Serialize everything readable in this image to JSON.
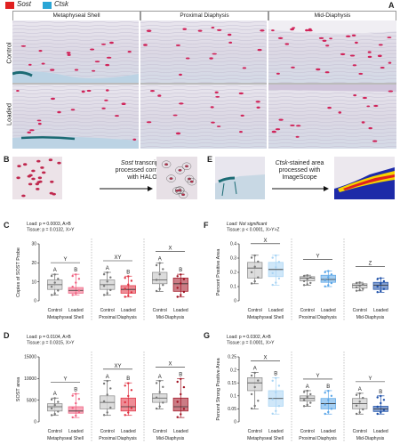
{
  "legend": {
    "items": [
      {
        "label": "Sost",
        "color": "#e02020"
      },
      {
        "label": "Ctsk",
        "color": "#2aa6d6"
      }
    ]
  },
  "panel_letters": [
    "A",
    "B",
    "C",
    "D",
    "E",
    "F",
    "G"
  ],
  "panel_a": {
    "columns": [
      "Metaphyseal Shell",
      "Proximal Diaphysis",
      "Mid-Diaphysis"
    ],
    "rows": [
      "Control",
      "Loaded"
    ]
  },
  "panel_b": {
    "caption_line1_italic": "Sost",
    "caption_line1_rest": " transcripts",
    "caption_line2": "processed correctly",
    "caption_line3": "with HALO"
  },
  "panel_e": {
    "caption_line1_italic": "Ctsk",
    "caption_line1_rest": "-stained area",
    "caption_line2": "processed with",
    "caption_line3": "ImageScope"
  },
  "colors": {
    "control_box": "#b0b0b0",
    "ms_loaded": "#f06080",
    "pd_loaded": "#e03040",
    "md_loaded": "#a01020",
    "f_loaded_ms": "#a8d4f4",
    "f_loaded_pd": "#5aa6e8",
    "f_loaded_md": "#1c4fa8"
  },
  "chart_data": [
    {
      "panel": "C",
      "type": "box",
      "ylabel": "Copies of SOST Probe",
      "ylim": [
        0,
        30
      ],
      "yticks": [
        0,
        10,
        20,
        30
      ],
      "stats": [
        "Load: p = 0.0003, A>B",
        "Tissue: p = 0.0132, X>Y"
      ],
      "groups": [
        {
          "region": "Metaphyseal Shell",
          "letter": "Y",
          "boxes": [
            {
              "label": "Control",
              "sig": "A",
              "q1": 6,
              "median": 8.5,
              "q3": 11,
              "min": 3,
              "max": 14
            },
            {
              "label": "Loaded",
              "sig": "B",
              "q1": 4,
              "median": 5.5,
              "q3": 7,
              "min": 3,
              "max": 14
            }
          ]
        },
        {
          "region": "Proximal Diaphysis",
          "letter": "XY",
          "boxes": [
            {
              "label": "Control",
              "sig": "A",
              "q1": 6,
              "median": 8.5,
              "q3": 11,
              "min": 3,
              "max": 15
            },
            {
              "label": "Loaded",
              "sig": "B",
              "q1": 4,
              "median": 6,
              "q3": 8,
              "min": 2,
              "max": 13
            }
          ]
        },
        {
          "region": "Mid-Diaphysis",
          "letter": "X",
          "boxes": [
            {
              "label": "Control",
              "sig": "A",
              "q1": 9,
              "median": 11,
              "q3": 15,
              "min": 5,
              "max": 20
            },
            {
              "label": "Loaded",
              "sig": "B",
              "q1": 5,
              "median": 9,
              "q3": 12,
              "min": 2,
              "max": 14
            }
          ]
        }
      ]
    },
    {
      "panel": "D",
      "type": "box",
      "ylabel": "SOST area",
      "ylim": [
        0,
        15000
      ],
      "yticks": [
        0,
        5000,
        10000,
        15000
      ],
      "stats": [
        "Load: p = 0.0104, A>B",
        "Tissue: p = 0.0315, X>Y"
      ],
      "groups": [
        {
          "region": "Metaphyseal Shell",
          "letter": "Y",
          "boxes": [
            {
              "label": "Control",
              "sig": "A",
              "q1": 2500,
              "median": 3500,
              "q3": 4200,
              "min": 1500,
              "max": 5500
            },
            {
              "label": "Loaded",
              "sig": "B",
              "q1": 2000,
              "median": 2500,
              "q3": 3500,
              "min": 1000,
              "max": 6500
            }
          ]
        },
        {
          "region": "Proximal Diaphysis",
          "letter": "XY",
          "boxes": [
            {
              "label": "Control",
              "sig": "A",
              "q1": 3000,
              "median": 4500,
              "q3": 6000,
              "min": 1500,
              "max": 9500
            },
            {
              "label": "Loaded",
              "sig": "B",
              "q1": 2500,
              "median": 3500,
              "q3": 5500,
              "min": 1500,
              "max": 9000
            }
          ]
        },
        {
          "region": "Mid-Diaphysis",
          "letter": "X",
          "boxes": [
            {
              "label": "Control",
              "sig": "A",
              "q1": 4500,
              "median": 5500,
              "q3": 6500,
              "min": 3000,
              "max": 9500
            },
            {
              "label": "Loaded",
              "sig": "B",
              "q1": 2500,
              "median": 3500,
              "q3": 5500,
              "min": 1000,
              "max": 10000
            }
          ]
        }
      ]
    },
    {
      "panel": "F",
      "type": "box",
      "ylabel": "Percent Positive Area",
      "ylim": [
        0,
        0.4
      ],
      "yticks": [
        0,
        0.1,
        0.2,
        0.3,
        0.4
      ],
      "stats": [
        "Load: Not significant",
        "Tissue: p < 0.0001, X>Y>Z"
      ],
      "groups": [
        {
          "region": "Metaphyseal Shell",
          "letter": "X",
          "boxes": [
            {
              "label": "Control",
              "q1": 0.16,
              "median": 0.23,
              "q3": 0.27,
              "min": 0.12,
              "max": 0.32
            },
            {
              "label": "Loaded",
              "q1": 0.17,
              "median": 0.22,
              "q3": 0.27,
              "min": 0.11,
              "max": 0.32
            }
          ]
        },
        {
          "region": "Proximal Diaphysis",
          "letter": "Y",
          "boxes": [
            {
              "label": "Control",
              "q1": 0.14,
              "median": 0.16,
              "q3": 0.17,
              "min": 0.11,
              "max": 0.18
            },
            {
              "label": "Loaded",
              "q1": 0.13,
              "median": 0.15,
              "q3": 0.18,
              "min": 0.1,
              "max": 0.21
            }
          ]
        },
        {
          "region": "Mid-Diaphysis",
          "letter": "Z",
          "boxes": [
            {
              "label": "Control",
              "q1": 0.09,
              "median": 0.11,
              "q3": 0.12,
              "min": 0.07,
              "max": 0.13
            },
            {
              "label": "Loaded",
              "q1": 0.08,
              "median": 0.11,
              "q3": 0.13,
              "min": 0.06,
              "max": 0.16
            }
          ]
        }
      ]
    },
    {
      "panel": "G",
      "type": "box",
      "ylabel": "Percent Strong Positive Area",
      "ylim": [
        0,
        0.25
      ],
      "yticks": [
        0,
        0.05,
        0.1,
        0.15,
        0.2,
        0.25
      ],
      "stats": [
        "Load: p = 0.0302, A>B",
        "Tissue: p = 0.0001, X>Y"
      ],
      "groups": [
        {
          "region": "Metaphyseal Shell",
          "letter": "X",
          "boxes": [
            {
              "label": "Control",
              "sig": "A",
              "q1": 0.12,
              "median": 0.15,
              "q3": 0.17,
              "min": 0.05,
              "max": 0.19
            },
            {
              "label": "Loaded",
              "sig": "B",
              "q1": 0.06,
              "median": 0.09,
              "q3": 0.12,
              "min": 0.03,
              "max": 0.17
            }
          ]
        },
        {
          "region": "Proximal Diaphysis",
          "letter": "Y",
          "boxes": [
            {
              "label": "Control",
              "sig": "A",
              "q1": 0.08,
              "median": 0.09,
              "q3": 0.1,
              "min": 0.06,
              "max": 0.12
            },
            {
              "label": "Loaded",
              "sig": "B",
              "q1": 0.05,
              "median": 0.07,
              "q3": 0.09,
              "min": 0.03,
              "max": 0.12
            }
          ]
        },
        {
          "region": "Mid-Diaphysis",
          "letter": "Y",
          "boxes": [
            {
              "label": "Control",
              "sig": "A",
              "q1": 0.05,
              "median": 0.07,
              "q3": 0.09,
              "min": 0.03,
              "max": 0.11
            },
            {
              "label": "Loaded",
              "sig": "B",
              "q1": 0.04,
              "median": 0.05,
              "q3": 0.06,
              "min": 0.03,
              "max": 0.1
            }
          ]
        }
      ]
    }
  ]
}
